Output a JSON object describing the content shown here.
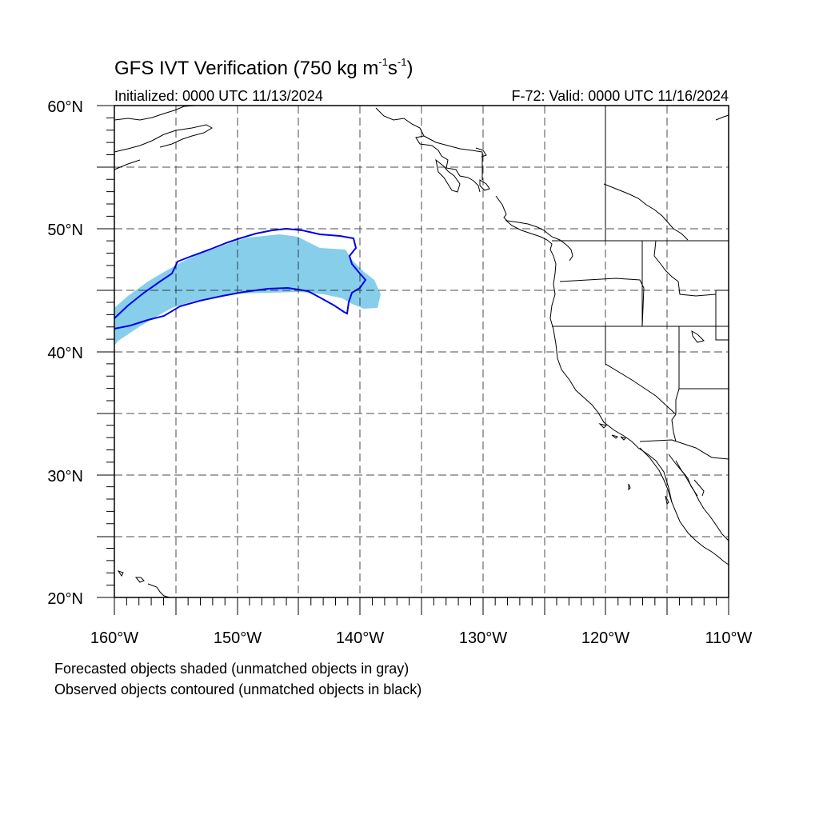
{
  "map": {
    "title_main": "GFS IVT Verification (750 kg m",
    "title_exp1": "-1",
    "title_mid": "s",
    "title_exp2": "-1",
    "title_end": ")",
    "initialized": "Initialized: 0000 UTC 11/13/2024",
    "valid": "F-72: Valid: 0000 UTC 11/16/2024",
    "lat_labels": [
      "60°N",
      "50°N",
      "40°N",
      "30°N",
      "20°N"
    ],
    "lon_labels": [
      "160°W",
      "150°W",
      "140°W",
      "130°W",
      "120°W",
      "110°W"
    ],
    "footnote_forecast": "Forecasted objects shaded (unmatched objects in gray)",
    "footnote_observed": "Observed objects contoured (unmatched objects in black)",
    "extent": {
      "lon_min": -160,
      "lon_max": -110,
      "lat_min": 20,
      "lat_max": 60
    },
    "colors": {
      "forecast_fill": "#87CEEB",
      "observed_contour": "#0000EE",
      "coastline": "#000000"
    },
    "graticule": "dashed grid every 5 degrees"
  }
}
